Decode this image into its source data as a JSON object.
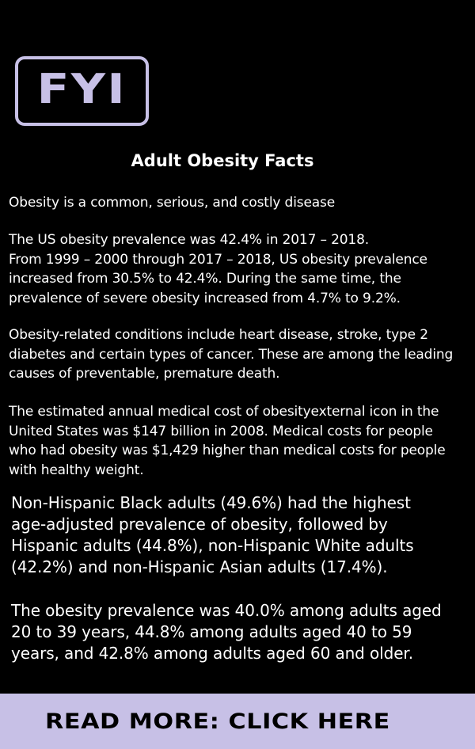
{
  "logo": {
    "text": "FYI"
  },
  "title": "Adult Obesity Facts",
  "paragraphs": [
    "Obesity is a common, serious, and costly disease",
    "The US obesity prevalence was 42.4% in 2017 – 2018.\nFrom 1999 – 2000 through 2017 – 2018, US obesity prevalence\nincreased from 30.5% to 42.4%. During the same time, the\nprevalence of severe obesity increased from 4.7% to 9.2%.",
    "Obesity-related conditions include heart disease, stroke, type 2\ndiabetes and certain types of cancer. These are among the leading\ncauses of preventable, premature death.",
    "The estimated annual medical cost of obesityexternal icon in the\nUnited States was $147 billion in 2008. Medical costs for people\nwho had obesity was $1,429 higher than medical costs for people\nwith healthy weight."
  ],
  "highlights": [
    "Non-Hispanic Black adults (49.6%) had the highest\nage-adjusted prevalence of obesity, followed by\nHispanic adults (44.8%), non-Hispanic White adults\n(42.2%) and non-Hispanic Asian adults (17.4%).",
    "The obesity prevalence was 40.0% among adults aged\n20 to 39 years, 44.8% among adults aged 40 to 59\nyears, and 42.8% among adults aged 60 and older."
  ],
  "cta": {
    "label": "READ MORE: CLICK HERE"
  },
  "colors": {
    "background": "#000000",
    "accent": "#c7c0e6",
    "text": "#ffffff"
  }
}
